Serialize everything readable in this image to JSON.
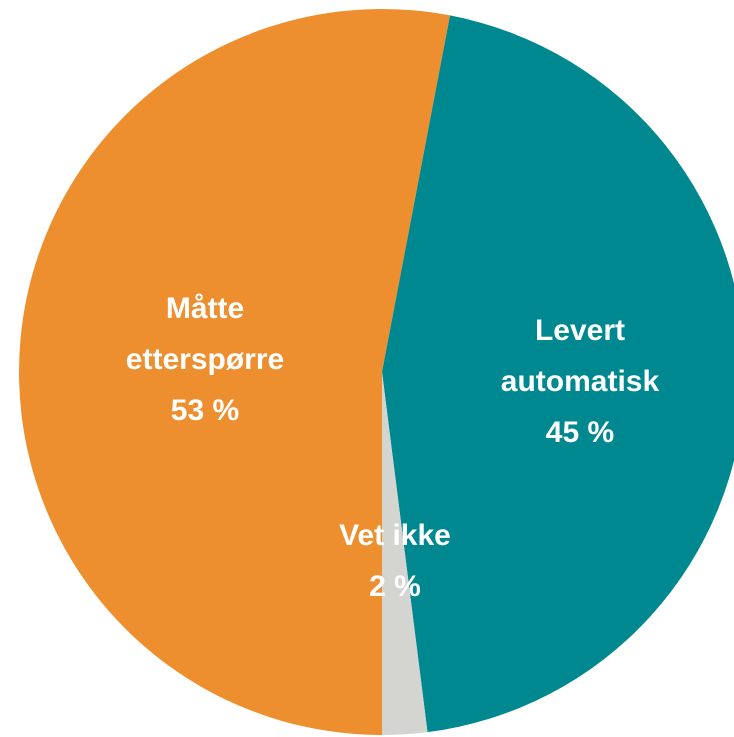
{
  "chart_data": {
    "type": "pie",
    "categories": [
      "Måtte etterspørre",
      "Levert automatisk",
      "Vet ikke"
    ],
    "values": [
      53,
      45,
      2
    ],
    "value_labels": [
      "53 %",
      "45 %",
      "2 %"
    ],
    "colors": [
      "#ed8f2f",
      "#008891",
      "#d4d4d1"
    ]
  }
}
